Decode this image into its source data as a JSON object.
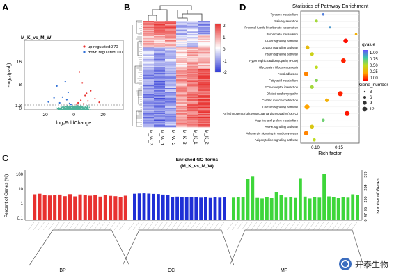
{
  "panel_labels": {
    "a": "A",
    "b": "B",
    "c": "C",
    "d": "D"
  },
  "volcano": {
    "title": "M_K_vs_M_W",
    "xlabel": "log₂FoldChange",
    "ylabel": "-log₁₀(padj)",
    "x_ticks": [
      "-20",
      "0",
      "20"
    ],
    "y_ticks": [
      "0",
      "1.3",
      "8",
      "16"
    ],
    "legend_up": "up regulated:370",
    "legend_down": "down regulated:107",
    "colors": {
      "up": "#e8312f",
      "down": "#2f6fd6",
      "ns": "#4fb39b"
    }
  },
  "heatmap": {
    "samples": [
      "M_W_3",
      "M_W_1",
      "M_W_2",
      "M_K_3",
      "M_K_1",
      "M_K_2"
    ],
    "colorbar_ticks": [
      "2",
      "1",
      "0",
      "-1",
      "-2"
    ],
    "colors": {
      "high": "#e8312f",
      "mid": "#ffffff",
      "low": "#2d38d6"
    }
  },
  "kegg": {
    "title": "Statistics of Pathway Enrichment",
    "xlabel": "Rich factor",
    "x_ticks": [
      "0.10",
      "0.15"
    ],
    "pathways": [
      "Tyrosine metabolism",
      "Salivary secretion",
      "Proximal tubule bicarbonate reclamation",
      "Propanoate metabolism",
      "PPAR signaling pathway",
      "Oxytocin signaling pathway",
      "Insulin signaling pathway",
      "Hypertrophic cardiomyopathy (HCM)",
      "Glycolysis / Gluconeogenesis",
      "Focal adhesion",
      "Fatty acid metabolism",
      "ECM-receptor interaction",
      "Dilated cardiomyopathy",
      "Cardiac muscle contraction",
      "Calcium signaling pathway",
      "Arrhythmogenic right ventricular cardiomyopathy (ARVC)",
      "Arginine and proline metabolism",
      "AMPK signaling pathway",
      "Adrenergic signaling in cardiomyocytes",
      "Adipocytokine signaling pathway"
    ],
    "qvalue_title": "qvalue",
    "qvalue_ticks": [
      "1.00",
      "0.75",
      "0.50",
      "0.25",
      "0.00"
    ],
    "gene_title": "Gene_number",
    "gene_ticks": [
      "3",
      "6",
      "9",
      "12"
    ]
  },
  "go": {
    "title_line1": "Enriched GO Terms",
    "title_line2": "(M_K_vs_M_W)",
    "left_label": "Percent of Genes (%)",
    "right_label": "Number of Genes",
    "left_ticks": [
      "100",
      "10",
      "1",
      "0.1"
    ],
    "right_ticks": [
      "379",
      "284",
      "190",
      "95",
      "47",
      "0"
    ],
    "groups": [
      "BP",
      "CC",
      "MF"
    ],
    "colors": {
      "BP": "#e8312f",
      "CC": "#1f2fd6",
      "MF": "#3ed63a"
    }
  },
  "watermark": "开泰生物",
  "chart_data": [
    {
      "type": "scatter",
      "title": "M_K_vs_M_W",
      "xlabel": "log₂FoldChange",
      "ylabel": "-log₁₀(padj)",
      "xlim": [
        -35,
        35
      ],
      "ylim": [
        0,
        22
      ],
      "threshold_y": 1.3,
      "series": [
        {
          "name": "up regulated:370",
          "points": [
            [
              3,
              2.2
            ],
            [
              5,
              3.0
            ],
            [
              8,
              4.5
            ],
            [
              10,
              2.8
            ],
            [
              12,
              6.0
            ],
            [
              15,
              3.5
            ],
            [
              6,
              8.5
            ],
            [
              4,
              12.0
            ],
            [
              18,
              2.4
            ],
            [
              9,
              5.2
            ],
            [
              2,
              1.8
            ],
            [
              7,
              1.9
            ]
          ]
        },
        {
          "name": "down regulated:107",
          "points": [
            [
              -3,
              2.0
            ],
            [
              -5,
              3.2
            ],
            [
              -8,
              4.0
            ],
            [
              -12,
              7.5
            ],
            [
              -18,
              2.5
            ],
            [
              -6,
              9.0
            ],
            [
              -4,
              5.5
            ],
            [
              -2,
              1.7
            ],
            [
              -10,
              2.2
            ],
            [
              -14,
              3.8
            ]
          ]
        }
      ]
    },
    {
      "type": "heatmap",
      "samples": [
        "M_W_3",
        "M_W_1",
        "M_W_2",
        "M_K_3",
        "M_K_1",
        "M_K_2"
      ],
      "color_scale": [
        -2,
        2
      ],
      "note_pattern": "top block high in M_W, bottom block high in M_K"
    },
    {
      "type": "scatter",
      "title": "Statistics of Pathway Enrichment",
      "xlabel": "Rich factor",
      "xlim": [
        0.06,
        0.19
      ],
      "categories": [
        "Tyrosine metabolism",
        "Salivary secretion",
        "Proximal tubule bicarbonate reclamation",
        "Propanoate metabolism",
        "PPAR signaling pathway",
        "Oxytocin signaling pathway",
        "Insulin signaling pathway",
        "Hypertrophic cardiomyopathy (HCM)",
        "Glycolysis / Gluconeogenesis",
        "Focal adhesion",
        "Fatty acid metabolism",
        "ECM-receptor interaction",
        "Dilated cardiomyopathy",
        "Cardiac muscle contraction",
        "Calcium signaling pathway",
        "Arrhythmogenic right ventricular cardiomyopathy (ARVC)",
        "Arginine and proline metabolism",
        "AMPK signaling pathway",
        "Adrenergic signaling in cardiomyocytes",
        "Adipocytokine signaling pathway"
      ],
      "rich_factor": [
        0.11,
        0.095,
        0.125,
        0.183,
        0.16,
        0.075,
        0.085,
        0.155,
        0.095,
        0.072,
        0.095,
        0.085,
        0.148,
        0.118,
        0.074,
        0.163,
        0.11,
        0.085,
        0.072,
        0.09
      ],
      "gene_number": [
        3,
        4,
        2,
        3,
        9,
        7,
        6,
        9,
        5,
        9,
        5,
        6,
        10,
        6,
        10,
        10,
        5,
        7,
        9,
        5
      ],
      "qvalue": [
        0.9,
        0.55,
        0.85,
        0.3,
        0.02,
        0.35,
        0.45,
        0.05,
        0.5,
        0.2,
        0.6,
        0.55,
        0.05,
        0.3,
        0.25,
        0.03,
        0.65,
        0.4,
        0.2,
        0.5
      ]
    },
    {
      "type": "bar",
      "title": "Enriched GO Terms (M_K_vs_M_W)",
      "ylabel": "Percent of Genes (%)",
      "log_scale": true,
      "groups": [
        "BP",
        "CC",
        "MF"
      ],
      "series": [
        {
          "name": "BP",
          "values": [
            4.8,
            5.2,
            4.4,
            4.0,
            4.3,
            4.6,
            3.6,
            4.9,
            3.5,
            4.7,
            4.1,
            3.9,
            4.5,
            3.4,
            4.2,
            3.8,
            3.6,
            3.3,
            3.9
          ]
        },
        {
          "name": "CC",
          "values": [
            5.2,
            5.4,
            5.5,
            5.3,
            5.1,
            5.0,
            4.6,
            4.2,
            3.1,
            3.4,
            3.0,
            3.2,
            3.0,
            3.3,
            2.9,
            3.1,
            2.8,
            3.0,
            2.9,
            3.2
          ]
        },
        {
          "name": "MF",
          "values": [
            2.9,
            3.2,
            3.0,
            45,
            64,
            2.8,
            2.6,
            3.1,
            2.7,
            6.5,
            4.5,
            2.9,
            3.3,
            2.8,
            51,
            3.4,
            2.6,
            3.2,
            2.9,
            92,
            3.5,
            3.0,
            2.7,
            3.1,
            2.9,
            4.8,
            4.5
          ]
        }
      ]
    }
  ]
}
